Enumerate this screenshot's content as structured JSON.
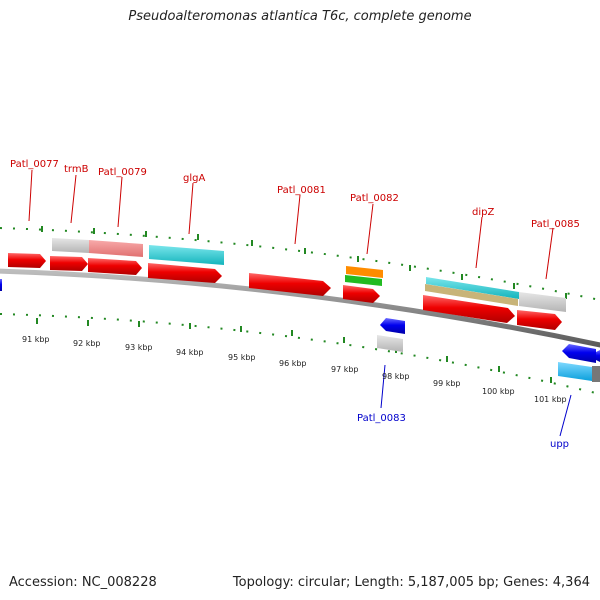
{
  "title": "Pseudoalteromonas atlantica T6c, complete genome",
  "footer": {
    "accession": "Accession: NC_008228",
    "topology": "Topology: circular; Length: 5,187,005 bp; Genes: 4,364"
  },
  "scale_labels": [
    "91 kbp",
    "92 kbp",
    "93 kbp",
    "94 kbp",
    "95 kbp",
    "96 kbp",
    "97 kbp",
    "98 kbp",
    "99 kbp",
    "100 kbp",
    "101 kbp"
  ],
  "gene_labels_top": [
    "Patl_0077",
    "trmB",
    "Patl_0079",
    "glgA",
    "Patl_0081",
    "Patl_0082",
    "dipZ",
    "Patl_0085"
  ],
  "gene_labels_bottom": [
    "Patl_0083",
    "upp"
  ],
  "colors": {
    "forward_label": "#cc0000",
    "reverse_label": "#0000cc",
    "cds": "#ee0000",
    "reverse_cds": "#0000ee",
    "feature_grey": "#c8c8c8",
    "feature_pink": "#f08080",
    "feature_cyan": "#20c8d0",
    "feature_orange": "#ff8c00",
    "feature_green": "#22bb22",
    "feature_tan": "#c8b478",
    "feature_lightblue": "#18b0e8",
    "ticks": "#228822",
    "backbone": "#888888"
  }
}
